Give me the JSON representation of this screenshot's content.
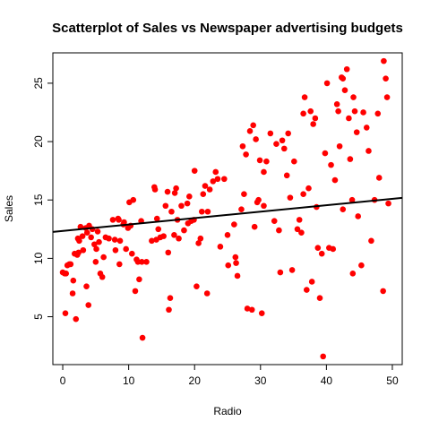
{
  "chart_data": {
    "type": "scatter",
    "title": "Scatterplot of Sales vs Newspaper advertising budgets",
    "xlabel": "Radio",
    "ylabel": "Sales",
    "xlim": [
      -1.5,
      51.5
    ],
    "ylim": [
      0.9,
      27.6
    ],
    "xticks": [
      "0",
      "10",
      "20",
      "30",
      "40",
      "50"
    ],
    "yticks": [
      "5",
      "10",
      "15",
      "20",
      "25"
    ],
    "grid": false,
    "legend": "none",
    "point_color": "#ff0000",
    "line_color": "#000000",
    "fit_line": {
      "intercept": 12.35,
      "slope": 0.055
    },
    "points": [
      [
        0.0,
        8.8
      ],
      [
        0.3,
        8.7
      ],
      [
        0.4,
        5.3
      ],
      [
        0.7,
        9.4
      ],
      [
        1.0,
        9.5
      ],
      [
        1.5,
        7.0
      ],
      [
        1.6,
        8.1
      ],
      [
        1.8,
        10.4
      ],
      [
        2.0,
        4.8
      ],
      [
        2.3,
        11.7
      ],
      [
        2.4,
        10.5
      ],
      [
        2.5,
        11.5
      ],
      [
        2.7,
        12.7
      ],
      [
        3.0,
        11.9
      ],
      [
        3.1,
        10.7
      ],
      [
        3.5,
        12.6
      ],
      [
        3.6,
        7.6
      ],
      [
        3.7,
        12.2
      ],
      [
        3.9,
        6.0
      ],
      [
        4.0,
        12.8
      ],
      [
        4.3,
        11.8
      ],
      [
        4.5,
        12.5
      ],
      [
        5.0,
        9.7
      ],
      [
        5.1,
        10.8
      ],
      [
        5.3,
        12.3
      ],
      [
        5.5,
        11.4
      ],
      [
        5.7,
        8.7
      ],
      [
        6.0,
        8.4
      ],
      [
        6.2,
        10.1
      ],
      [
        7.0,
        11.7
      ],
      [
        7.6,
        13.3
      ],
      [
        7.9,
        11.6
      ],
      [
        8.0,
        10.7
      ],
      [
        8.4,
        13.4
      ],
      [
        8.6,
        9.5
      ],
      [
        8.7,
        11.5
      ],
      [
        9.2,
        12.9
      ],
      [
        9.3,
        13.1
      ],
      [
        9.6,
        10.8
      ],
      [
        9.9,
        12.6
      ],
      [
        10.1,
        14.8
      ],
      [
        10.3,
        12.8
      ],
      [
        10.5,
        10.4
      ],
      [
        10.7,
        15.0
      ],
      [
        11.0,
        7.2
      ],
      [
        11.2,
        9.9
      ],
      [
        11.4,
        9.7
      ],
      [
        11.6,
        8.2
      ],
      [
        11.9,
        13.2
      ],
      [
        12.0,
        9.7
      ],
      [
        12.1,
        3.2
      ],
      [
        12.7,
        9.7
      ],
      [
        13.9,
        16.1
      ],
      [
        14.0,
        15.9
      ],
      [
        14.2,
        11.6
      ],
      [
        14.3,
        13.4
      ],
      [
        14.5,
        12.5
      ],
      [
        14.8,
        11.8
      ],
      [
        15.3,
        11.9
      ],
      [
        15.6,
        14.5
      ],
      [
        15.9,
        15.7
      ],
      [
        16.0,
        10.5
      ],
      [
        16.1,
        5.6
      ],
      [
        16.3,
        6.6
      ],
      [
        16.9,
        12.0
      ],
      [
        17.0,
        15.6
      ],
      [
        17.2,
        16.0
      ],
      [
        17.4,
        13.3
      ],
      [
        17.6,
        11.7
      ],
      [
        18.0,
        14.5
      ],
      [
        18.4,
        12.4
      ],
      [
        18.9,
        14.7
      ],
      [
        19.2,
        15.3
      ],
      [
        19.5,
        13.2
      ],
      [
        19.9,
        13.3
      ],
      [
        20.0,
        17.5
      ],
      [
        20.3,
        7.6
      ],
      [
        20.6,
        11.3
      ],
      [
        20.9,
        11.7
      ],
      [
        21.1,
        14.0
      ],
      [
        21.3,
        15.5
      ],
      [
        21.6,
        16.2
      ],
      [
        21.9,
        7.0
      ],
      [
        22.3,
        15.9
      ],
      [
        22.8,
        16.6
      ],
      [
        23.2,
        17.4
      ],
      [
        23.5,
        16.8
      ],
      [
        23.9,
        11.0
      ],
      [
        24.5,
        16.8
      ],
      [
        25.1,
        9.4
      ],
      [
        26.0,
        12.9
      ],
      [
        26.2,
        10.1
      ],
      [
        26.3,
        9.6
      ],
      [
        26.5,
        8.5
      ],
      [
        27.1,
        14.2
      ],
      [
        27.3,
        19.6
      ],
      [
        27.5,
        15.5
      ],
      [
        27.8,
        18.9
      ],
      [
        28.0,
        5.7
      ],
      [
        28.4,
        20.9
      ],
      [
        28.7,
        5.6
      ],
      [
        28.9,
        21.4
      ],
      [
        29.1,
        12.7
      ],
      [
        29.3,
        20.2
      ],
      [
        29.5,
        14.8
      ],
      [
        29.7,
        15.0
      ],
      [
        29.9,
        18.4
      ],
      [
        30.2,
        5.3
      ],
      [
        30.5,
        14.5
      ],
      [
        30.9,
        18.3
      ],
      [
        31.5,
        20.7
      ],
      [
        32.1,
        13.2
      ],
      [
        32.4,
        19.8
      ],
      [
        32.8,
        12.4
      ],
      [
        33.0,
        8.8
      ],
      [
        33.3,
        20.1
      ],
      [
        33.6,
        19.4
      ],
      [
        34.0,
        17.1
      ],
      [
        34.2,
        20.7
      ],
      [
        34.5,
        15.2
      ],
      [
        34.8,
        9.0
      ],
      [
        35.1,
        18.3
      ],
      [
        35.6,
        12.5
      ],
      [
        35.9,
        13.3
      ],
      [
        36.2,
        12.2
      ],
      [
        36.5,
        22.4
      ],
      [
        36.7,
        23.8
      ],
      [
        37.0,
        7.3
      ],
      [
        37.3,
        16.0
      ],
      [
        37.6,
        22.6
      ],
      [
        37.8,
        8.0
      ],
      [
        38.0,
        21.5
      ],
      [
        38.3,
        22.0
      ],
      [
        38.7,
        10.9
      ],
      [
        39.0,
        6.6
      ],
      [
        39.3,
        10.4
      ],
      [
        39.5,
        1.6
      ],
      [
        39.8,
        19.0
      ],
      [
        40.1,
        25.0
      ],
      [
        40.4,
        10.9
      ],
      [
        40.7,
        18.0
      ],
      [
        41.0,
        10.8
      ],
      [
        41.3,
        16.7
      ],
      [
        41.6,
        23.2
      ],
      [
        41.8,
        22.6
      ],
      [
        42.0,
        19.6
      ],
      [
        42.3,
        25.5
      ],
      [
        42.5,
        25.4
      ],
      [
        42.8,
        24.4
      ],
      [
        43.1,
        26.2
      ],
      [
        43.4,
        22.0
      ],
      [
        43.6,
        18.5
      ],
      [
        43.9,
        15.0
      ],
      [
        44.1,
        23.8
      ],
      [
        44.3,
        22.6
      ],
      [
        44.6,
        20.8
      ],
      [
        44.8,
        13.6
      ],
      [
        45.3,
        9.4
      ],
      [
        45.6,
        22.5
      ],
      [
        46.1,
        21.2
      ],
      [
        46.4,
        19.2
      ],
      [
        46.8,
        11.5
      ],
      [
        47.3,
        15.0
      ],
      [
        47.8,
        22.4
      ],
      [
        48.0,
        16.9
      ],
      [
        48.6,
        7.2
      ],
      [
        48.7,
        26.9
      ],
      [
        49.0,
        25.4
      ],
      [
        49.2,
        23.8
      ],
      [
        49.4,
        14.7
      ],
      [
        44.0,
        8.7
      ],
      [
        42.5,
        14.2
      ],
      [
        38.5,
        14.4
      ],
      [
        36.5,
        15.5
      ],
      [
        30.5,
        17.4
      ],
      [
        25.0,
        12.0
      ],
      [
        22.0,
        14.0
      ],
      [
        19.0,
        13.0
      ],
      [
        16.5,
        14.0
      ],
      [
        13.5,
        11.5
      ],
      [
        8.5,
        13.3
      ],
      [
        6.5,
        11.8
      ],
      [
        4.8,
        11.2
      ],
      [
        2.2,
        10.3
      ],
      [
        1.2,
        9.5
      ],
      [
        0.5,
        8.7
      ]
    ]
  }
}
